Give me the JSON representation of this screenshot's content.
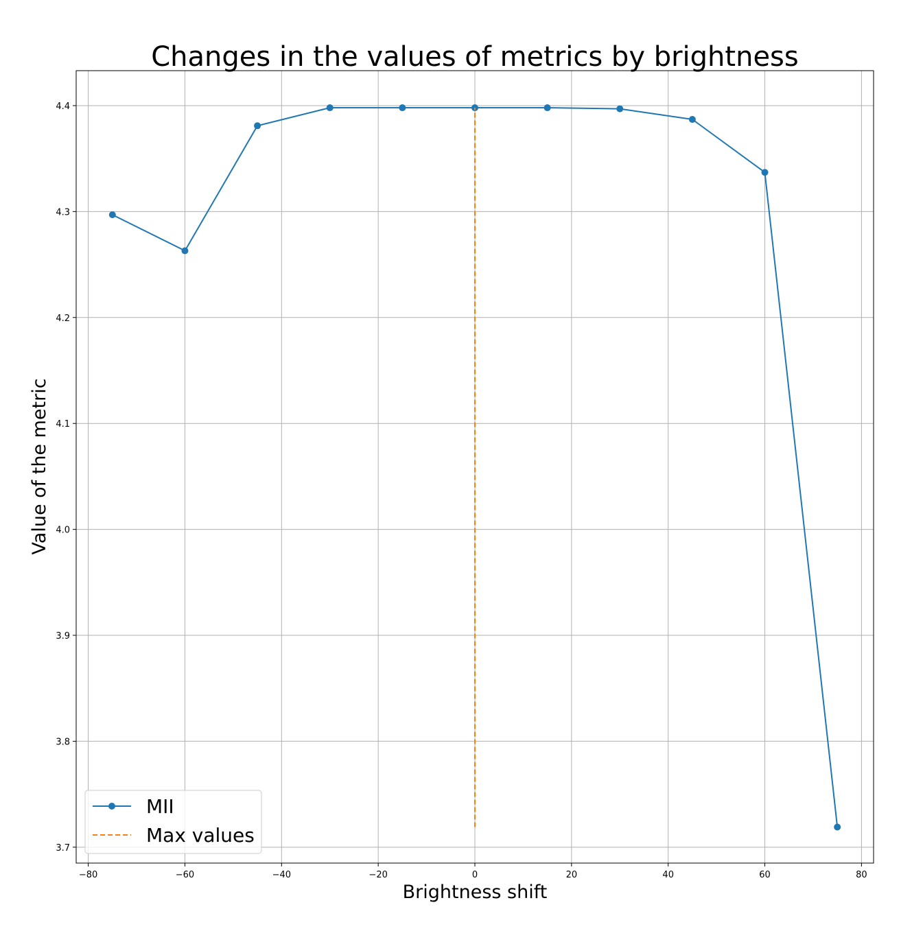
{
  "chart_data": {
    "type": "line",
    "title": "Changes in the values of metrics by brightness",
    "xlabel": "Brightness shift",
    "ylabel": "Value of the metric",
    "xlim": [
      -82.5,
      82.5
    ],
    "ylim": [
      3.685,
      4.433
    ],
    "xticks": [
      -80,
      -60,
      -40,
      -20,
      0,
      20,
      40,
      60,
      80
    ],
    "yticks": [
      3.7,
      3.8,
      3.9,
      4.0,
      4.1,
      4.2,
      4.3,
      4.4
    ],
    "xtick_labels": [
      "−80",
      "−60",
      "−40",
      "−20",
      "0",
      "20",
      "40",
      "60",
      "80"
    ],
    "ytick_labels": [
      "3.7",
      "3.8",
      "3.9",
      "4.0",
      "4.1",
      "4.2",
      "4.3",
      "4.4"
    ],
    "grid": true,
    "legend_position": "lower-left",
    "series": [
      {
        "name": "MII",
        "color": "#1f77b4",
        "style": "solid",
        "marker": "circle",
        "x": [
          -75,
          -60,
          -45,
          -30,
          -15,
          0,
          15,
          30,
          45,
          60,
          75
        ],
        "y": [
          4.297,
          4.263,
          4.381,
          4.398,
          4.398,
          4.398,
          4.398,
          4.397,
          4.387,
          4.337,
          3.719
        ]
      },
      {
        "name": "Max values",
        "color": "#ff7f0e",
        "style": "dashed",
        "marker": "none",
        "x": [
          0,
          0
        ],
        "y": [
          3.719,
          4.398
        ]
      }
    ]
  }
}
